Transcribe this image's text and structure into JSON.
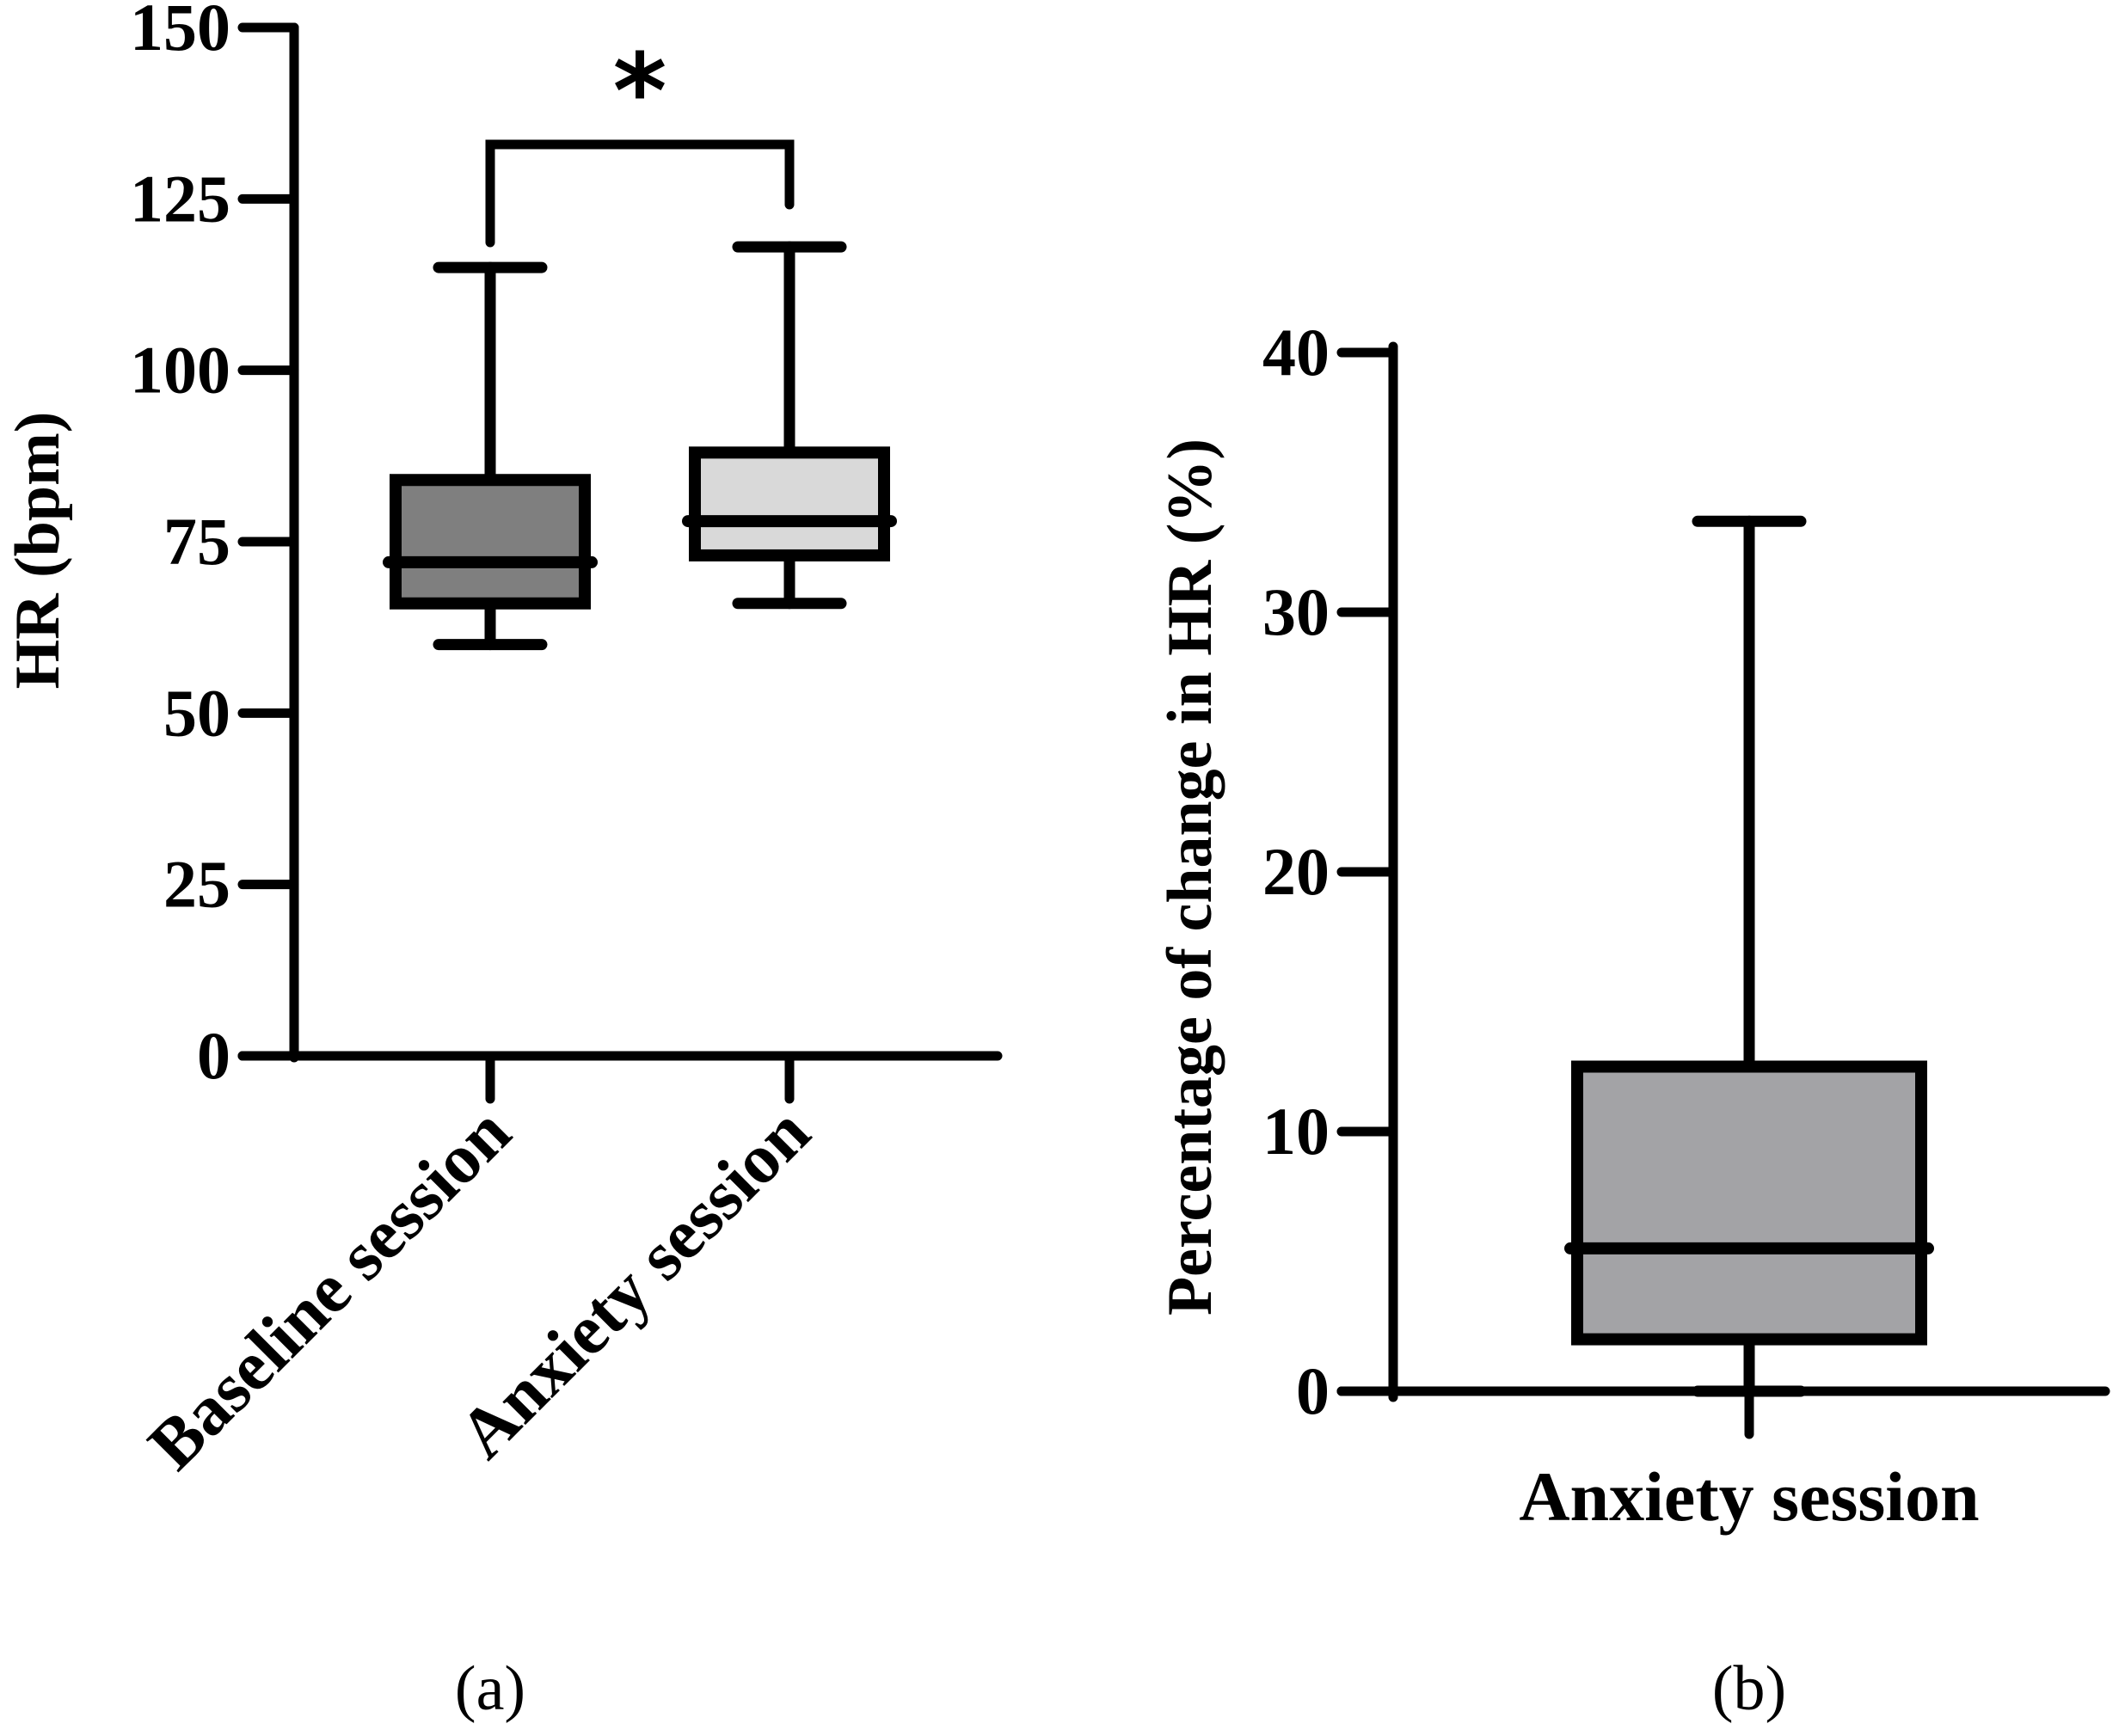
{
  "chart_data": [
    {
      "type": "box",
      "panel_label": "(a)",
      "ylabel": "HR (bpm)",
      "ylim": [
        0,
        150
      ],
      "yticks": [
        "0",
        "25",
        "50",
        "75",
        "100",
        "125",
        "150"
      ],
      "categories": [
        "Baseline session",
        "Anxiety session"
      ],
      "boxes": [
        {
          "name": "Baseline session",
          "min": 60,
          "q1": 66,
          "median": 72,
          "q3": 84,
          "max": 115,
          "color": "#7f7f7f"
        },
        {
          "name": "Anxiety session",
          "min": 66,
          "q1": 73,
          "median": 78,
          "q3": 88,
          "max": 118,
          "color": "#d9d9d9"
        }
      ],
      "significance": {
        "label": "*",
        "between": [
          "Baseline session",
          "Anxiety session"
        ]
      }
    },
    {
      "type": "box",
      "panel_label": "(b)",
      "ylabel": "Percentage of change in HR (%)",
      "ylim": [
        0,
        40
      ],
      "yticks": [
        "0",
        "10",
        "20",
        "30",
        "40"
      ],
      "categories": [
        "Anxiety session"
      ],
      "boxes": [
        {
          "name": "Anxiety session",
          "min": 0,
          "q1": 2,
          "median": 5.5,
          "q3": 12.5,
          "max": 33.5,
          "color": "#a3a3a6"
        }
      ]
    }
  ]
}
